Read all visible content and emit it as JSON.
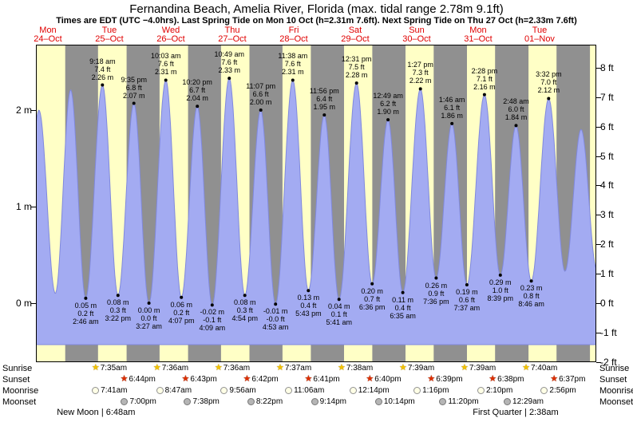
{
  "header": {
    "title": "Fernandina Beach, Amelia River, Florida (max. tidal range 2.78m 9.1ft)",
    "subtitle": "Times are EDT (UTC −4.0hrs). Last Spring Tide on Mon 10 Oct (h=2.31m 7.6ft). Next Spring Tide on Thu 27 Oct (h=2.33m 7.6ft)"
  },
  "days": [
    {
      "weekday": "Mon",
      "date": "24–Oct"
    },
    {
      "weekday": "Tue",
      "date": "25–Oct"
    },
    {
      "weekday": "Wed",
      "date": "26–Oct"
    },
    {
      "weekday": "Thu",
      "date": "27–Oct"
    },
    {
      "weekday": "Fri",
      "date": "28–Oct"
    },
    {
      "weekday": "Sat",
      "date": "29–Oct"
    },
    {
      "weekday": "Sun",
      "date": "30–Oct"
    },
    {
      "weekday": "Mon",
      "date": "31–Oct"
    },
    {
      "weekday": "Tue",
      "date": "01–Nov"
    }
  ],
  "axes": {
    "left": [
      {
        "label": "2 m",
        "m": 2
      },
      {
        "label": "1 m",
        "m": 1
      },
      {
        "label": "0 m",
        "m": 0
      }
    ],
    "right": [
      {
        "label": "8 ft",
        "ft": 8
      },
      {
        "label": "7 ft",
        "ft": 7
      },
      {
        "label": "6 ft",
        "ft": 6
      },
      {
        "label": "5 ft",
        "ft": 5
      },
      {
        "label": "4 ft",
        "ft": 4
      },
      {
        "label": "3 ft",
        "ft": 3
      },
      {
        "label": "2 ft",
        "ft": 2
      },
      {
        "label": "1 ft",
        "ft": 1
      },
      {
        "label": "0 ft",
        "ft": 0
      },
      {
        "label": "-1 ft",
        "ft": -1
      },
      {
        "label": "-2 ft",
        "ft": -2
      }
    ]
  },
  "colors": {
    "daylight": "#ffffc6",
    "night": "#909090",
    "tide_fill": "#a3abf2",
    "tide_edge": "#8089dd",
    "day_label": "#e00000"
  },
  "chart_data": {
    "type": "area",
    "series": "Tide height (m / ft) vs time, Mon 24 Oct – Wed 02 Nov",
    "ylim_m": [
      -0.67,
      2.68
    ],
    "tide_extremes": [
      {
        "day": 0,
        "hour": 2.2,
        "m": 0.12,
        "type": "low"
      },
      {
        "day": 0,
        "hour": 8.5,
        "m": 2.0,
        "type": "high"
      },
      {
        "day": 0,
        "hour": 14.9,
        "m": 0.1,
        "type": "low"
      },
      {
        "day": 0,
        "hour": 20.9,
        "m": 2.21,
        "type": "high"
      },
      {
        "day": 1,
        "hour": 2.767,
        "m": 0.05,
        "type": "low",
        "labels": [
          "0.05 m",
          "0.2 ft",
          "2:46 am"
        ]
      },
      {
        "day": 1,
        "hour": 9.3,
        "m": 2.26,
        "type": "high",
        "labels": [
          "9:18 am",
          "7.4 ft",
          "2.26 m"
        ]
      },
      {
        "day": 1,
        "hour": 15.367,
        "m": 0.08,
        "type": "low",
        "labels": [
          "0.08 m",
          "0.3 ft",
          "3:22 pm"
        ]
      },
      {
        "day": 1,
        "hour": 21.583,
        "m": 2.07,
        "type": "high",
        "labels": [
          "9:35 pm",
          "6.8 ft",
          "2.07 m"
        ]
      },
      {
        "day": 2,
        "hour": 3.45,
        "m": 0.0,
        "type": "low",
        "labels": [
          "0.00 m",
          "0.0 ft",
          "3:27 am"
        ]
      },
      {
        "day": 2,
        "hour": 10.05,
        "m": 2.31,
        "type": "high",
        "labels": [
          "10:03 am",
          "7.6 ft",
          "2.31 m"
        ]
      },
      {
        "day": 2,
        "hour": 16.117,
        "m": 0.06,
        "type": "low",
        "labels": [
          "0.06 m",
          "0.2 ft",
          "4:07 pm"
        ]
      },
      {
        "day": 2,
        "hour": 22.333,
        "m": 2.04,
        "type": "high",
        "labels": [
          "10:20 pm",
          "6.7 ft",
          "2.04 m"
        ]
      },
      {
        "day": 3,
        "hour": 4.15,
        "m": -0.02,
        "type": "low",
        "labels": [
          "-0.02 m",
          "-0.1 ft",
          "4:09 am"
        ]
      },
      {
        "day": 3,
        "hour": 10.817,
        "m": 2.33,
        "type": "high",
        "labels": [
          "10:49 am",
          "7.6 ft",
          "2.33 m"
        ]
      },
      {
        "day": 3,
        "hour": 16.9,
        "m": 0.08,
        "type": "low",
        "labels": [
          "0.08 m",
          "0.3 ft",
          "4:54 pm"
        ]
      },
      {
        "day": 3,
        "hour": 23.117,
        "m": 2.0,
        "type": "high",
        "labels": [
          "11:07 pm",
          "6.6 ft",
          "2.00 m"
        ]
      },
      {
        "day": 4,
        "hour": 4.883,
        "m": -0.01,
        "type": "low",
        "labels": [
          "-0.01 m",
          "-0.0 ft",
          "4:53 am"
        ]
      },
      {
        "day": 4,
        "hour": 11.633,
        "m": 2.31,
        "type": "high",
        "labels": [
          "11:38 am",
          "7.6 ft",
          "2.31 m"
        ]
      },
      {
        "day": 4,
        "hour": 17.717,
        "m": 0.13,
        "type": "low",
        "labels": [
          "0.13 m",
          "0.4 ft",
          "5:43 pm"
        ]
      },
      {
        "day": 4,
        "hour": 23.933,
        "m": 1.95,
        "type": "high",
        "labels": [
          "11:56 pm",
          "6.4 ft",
          "1.95 m"
        ]
      },
      {
        "day": 5,
        "hour": 5.683,
        "m": 0.04,
        "type": "low",
        "labels": [
          "0.04 m",
          "0.1 ft",
          "5:41 am"
        ]
      },
      {
        "day": 5,
        "hour": 12.517,
        "m": 2.28,
        "type": "high",
        "labels": [
          "12:31 pm",
          "7.5 ft",
          "2.28 m"
        ]
      },
      {
        "day": 5,
        "hour": 18.6,
        "m": 0.2,
        "type": "low",
        "labels": [
          "0.20 m",
          "0.7 ft",
          "6:36 pm"
        ]
      },
      {
        "day": 6,
        "hour": 0.817,
        "m": 1.9,
        "type": "high",
        "labels": [
          "12:49 am",
          "6.2 ft",
          "1.90 m"
        ]
      },
      {
        "day": 6,
        "hour": 6.583,
        "m": 0.11,
        "type": "low",
        "labels": [
          "0.11 m",
          "0.4 ft",
          "6:35 am"
        ]
      },
      {
        "day": 6,
        "hour": 13.45,
        "m": 2.22,
        "type": "high",
        "labels": [
          "1:27 pm",
          "7.3 ft",
          "2.22 m"
        ]
      },
      {
        "day": 6,
        "hour": 19.6,
        "m": 0.26,
        "type": "low",
        "labels": [
          "0.26 m",
          "0.9 ft",
          "7:36 pm"
        ]
      },
      {
        "day": 7,
        "hour": 1.767,
        "m": 1.86,
        "type": "high",
        "labels": [
          "1:46 am",
          "6.1 ft",
          "1.86 m"
        ]
      },
      {
        "day": 7,
        "hour": 7.617,
        "m": 0.19,
        "type": "low",
        "labels": [
          "0.19 m",
          "0.6 ft",
          "7:37 am"
        ]
      },
      {
        "day": 7,
        "hour": 14.467,
        "m": 2.16,
        "type": "high",
        "labels": [
          "2:28 pm",
          "7.1 ft",
          "2.16 m"
        ]
      },
      {
        "day": 7,
        "hour": 20.65,
        "m": 0.29,
        "type": "low",
        "labels": [
          "0.29 m",
          "1.0 ft",
          "8:39 pm"
        ]
      },
      {
        "day": 8,
        "hour": 2.8,
        "m": 1.84,
        "type": "high",
        "labels": [
          "2:48 am",
          "6.0 ft",
          "1.84 m"
        ]
      },
      {
        "day": 8,
        "hour": 8.767,
        "m": 0.23,
        "type": "low",
        "labels": [
          "0.23 m",
          "0.8 ft",
          "8:46 am"
        ]
      },
      {
        "day": 8,
        "hour": 15.533,
        "m": 2.12,
        "type": "high",
        "labels": [
          "3:32 pm",
          "7.0 ft",
          "2.12 m"
        ]
      },
      {
        "day": 8,
        "hour": 21.9,
        "m": 0.33,
        "type": "low"
      },
      {
        "day": 9,
        "hour": 4.2,
        "m": 1.8,
        "type": "high"
      },
      {
        "day": 9,
        "hour": 10.3,
        "m": 0.35,
        "type": "low"
      }
    ],
    "daylight": [
      {
        "day": 0,
        "rise": 7.567,
        "set": 18.75
      },
      {
        "day": 1,
        "rise": 7.583,
        "set": 18.733
      },
      {
        "day": 2,
        "rise": 7.6,
        "set": 18.717
      },
      {
        "day": 3,
        "rise": 7.6,
        "set": 18.7
      },
      {
        "day": 4,
        "rise": 7.617,
        "set": 18.683
      },
      {
        "day": 5,
        "rise": 7.633,
        "set": 18.667
      },
      {
        "day": 6,
        "rise": 7.65,
        "set": 18.65
      },
      {
        "day": 7,
        "rise": 7.65,
        "set": 18.633
      },
      {
        "day": 8,
        "rise": 7.667,
        "set": 18.617
      },
      {
        "day": 9,
        "rise": 7.683,
        "set": 18.6
      }
    ]
  },
  "astro_rows": [
    {
      "label": "Sunrise",
      "icon": "sunrise",
      "events": [
        {
          "day": 1,
          "hour": 7.583,
          "time": "7:35am"
        },
        {
          "day": 2,
          "hour": 7.6,
          "time": "7:36am"
        },
        {
          "day": 3,
          "hour": 7.6,
          "time": "7:36am"
        },
        {
          "day": 4,
          "hour": 7.617,
          "time": "7:37am"
        },
        {
          "day": 5,
          "hour": 7.633,
          "time": "7:38am"
        },
        {
          "day": 6,
          "hour": 7.65,
          "time": "7:39am"
        },
        {
          "day": 7,
          "hour": 7.65,
          "time": "7:39am"
        },
        {
          "day": 8,
          "hour": 7.667,
          "time": "7:40am"
        }
      ]
    },
    {
      "label": "Sunset",
      "icon": "sunset",
      "events": [
        {
          "day": 1,
          "hour": 18.733,
          "time": "6:44pm"
        },
        {
          "day": 2,
          "hour": 18.717,
          "time": "6:43pm"
        },
        {
          "day": 3,
          "hour": 18.7,
          "time": "6:42pm"
        },
        {
          "day": 4,
          "hour": 18.683,
          "time": "6:41pm"
        },
        {
          "day": 5,
          "hour": 18.667,
          "time": "6:40pm"
        },
        {
          "day": 6,
          "hour": 18.65,
          "time": "6:39pm"
        },
        {
          "day": 7,
          "hour": 18.633,
          "time": "6:38pm"
        },
        {
          "day": 8,
          "hour": 18.617,
          "time": "6:37pm"
        }
      ]
    },
    {
      "label": "Moonrise",
      "icon": "moonrise",
      "events": [
        {
          "day": 1,
          "hour": 7.683,
          "time": "7:41am"
        },
        {
          "day": 2,
          "hour": 8.783,
          "time": "8:47am"
        },
        {
          "day": 3,
          "hour": 9.933,
          "time": "9:56am"
        },
        {
          "day": 4,
          "hour": 11.1,
          "time": "11:06am"
        },
        {
          "day": 5,
          "hour": 12.233,
          "time": "12:14pm"
        },
        {
          "day": 6,
          "hour": 13.267,
          "time": "1:16pm"
        },
        {
          "day": 7,
          "hour": 14.167,
          "time": "2:10pm"
        },
        {
          "day": 8,
          "hour": 14.933,
          "time": "2:56pm"
        }
      ]
    },
    {
      "label": "Moonset",
      "icon": "moonset",
      "events": [
        {
          "day": 1,
          "hour": 19.0,
          "time": "7:00pm"
        },
        {
          "day": 2,
          "hour": 19.633,
          "time": "7:38pm"
        },
        {
          "day": 3,
          "hour": 20.367,
          "time": "8:22pm"
        },
        {
          "day": 4,
          "hour": 21.233,
          "time": "9:14pm"
        },
        {
          "day": 5,
          "hour": 22.233,
          "time": "10:14pm"
        },
        {
          "day": 6,
          "hour": 23.333,
          "time": "11:20pm"
        },
        {
          "day": 8,
          "hour": 0.483,
          "time": "12:29am"
        }
      ]
    }
  ],
  "moon_phases": [
    {
      "label": "New Moon",
      "time": "6:48am",
      "day": 1,
      "hour": 6.8
    },
    {
      "label": "First Quarter",
      "time": "2:38am",
      "day": 8,
      "hour": 2.633
    }
  ]
}
